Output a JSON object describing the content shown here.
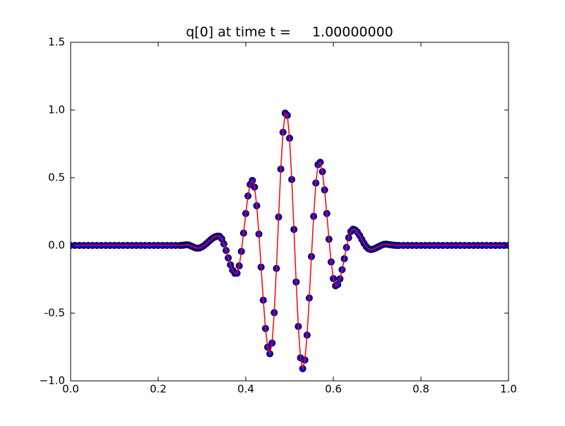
{
  "chart_data": {
    "type": "line",
    "title": "q[0] at time t =     1.00000000",
    "x": [
      0,
      0.01,
      0.02,
      0.03,
      0.04,
      0.05,
      0.06,
      0.07,
      0.08,
      0.09,
      0.1,
      0.11,
      0.12,
      0.13,
      0.14,
      0.15,
      0.16,
      0.17,
      0.18,
      0.19,
      0.2,
      0.21,
      0.22,
      0.23,
      0.24,
      0.25,
      0.255,
      0.26,
      0.265,
      0.27,
      0.275,
      0.28,
      0.285,
      0.29,
      0.295,
      0.3,
      0.305,
      0.31,
      0.315,
      0.32,
      0.325,
      0.33,
      0.335,
      0.34,
      0.345,
      0.35,
      0.355,
      0.36,
      0.365,
      0.37,
      0.375,
      0.38,
      0.385,
      0.39,
      0.395,
      0.4,
      0.405,
      0.41,
      0.415,
      0.42,
      0.425,
      0.43,
      0.435,
      0.44,
      0.445,
      0.45,
      0.455,
      0.46,
      0.465,
      0.47,
      0.475,
      0.48,
      0.485,
      0.49,
      0.495,
      0.5,
      0.505,
      0.51,
      0.515,
      0.52,
      0.525,
      0.53,
      0.535,
      0.54,
      0.545,
      0.55,
      0.555,
      0.56,
      0.565,
      0.57,
      0.575,
      0.58,
      0.585,
      0.59,
      0.595,
      0.6,
      0.605,
      0.61,
      0.615,
      0.62,
      0.625,
      0.63,
      0.635,
      0.64,
      0.645,
      0.65,
      0.655,
      0.66,
      0.665,
      0.67,
      0.675,
      0.68,
      0.685,
      0.69,
      0.695,
      0.7,
      0.705,
      0.71,
      0.715,
      0.72,
      0.725,
      0.73,
      0.735,
      0.74,
      0.745,
      0.75,
      0.76,
      0.77,
      0.78,
      0.79,
      0.8,
      0.81,
      0.82,
      0.83,
      0.84,
      0.85,
      0.86,
      0.87,
      0.88,
      0.89,
      0.9,
      0.91,
      0.92,
      0.93,
      0.94,
      0.95,
      0.96,
      0.97,
      0.98,
      0.99,
      1
    ],
    "series": [
      {
        "line_color": "#ff0000",
        "marker_color": "#0000ff",
        "values": [
          0,
          0,
          0,
          0,
          0,
          0,
          0,
          0,
          0,
          0,
          0,
          0,
          0,
          0,
          0,
          0,
          0,
          0,
          0,
          0,
          0,
          0,
          0,
          0,
          0,
          0,
          0.001,
          0.003,
          0.005,
          0.003,
          -0.004,
          -0.011,
          -0.018,
          -0.02,
          -0.018,
          -0.011,
          0,
          0.013,
          0.028,
          0.042,
          0.055,
          0.064,
          0.069,
          0.068,
          0.05,
          0.012,
          -0.037,
          -0.092,
          -0.143,
          -0.183,
          -0.206,
          -0.205,
          -0.151,
          -0.044,
          0.091,
          0.236,
          0.365,
          0.45,
          0.48,
          0.431,
          0.293,
          0.084,
          -0.16,
          -0.404,
          -0.613,
          -0.751,
          -0.8,
          -0.721,
          -0.496,
          -0.17,
          0.21,
          0.564,
          0.836,
          0.977,
          0.961,
          0.792,
          0.487,
          0.118,
          -0.27,
          -0.598,
          -0.83,
          -0.91,
          -0.846,
          -0.662,
          -0.388,
          -0.082,
          0.215,
          0.461,
          0.597,
          0.614,
          0.545,
          0.41,
          0.236,
          0.046,
          -0.122,
          -0.245,
          -0.298,
          -0.289,
          -0.247,
          -0.179,
          -0.098,
          -0.015,
          0.057,
          0.103,
          0.12,
          0.114,
          0.098,
          0.074,
          0.045,
          0.016,
          -0.008,
          -0.024,
          -0.03,
          -0.028,
          -0.022,
          -0.014,
          -0.006,
          0.002,
          0.008,
          0.01,
          0.008,
          0.005,
          0.003,
          0.001,
          0,
          0,
          0,
          0,
          0,
          0,
          0,
          0,
          0,
          0,
          0,
          0,
          0,
          0,
          0,
          0,
          0,
          0,
          0,
          0,
          0,
          0,
          0,
          0,
          0,
          0,
          0
        ]
      }
    ],
    "xlim": [
      0,
      1
    ],
    "ylim": [
      -1,
      1.5
    ],
    "xticks": [
      {
        "value": 0,
        "label": "0.0"
      },
      0.2,
      0.4,
      0.6,
      0.8,
      {
        "value": 1,
        "label": "1.0"
      }
    ],
    "yticks": [
      {
        "value": -1,
        "label": "−1.0"
      },
      -0.5,
      {
        "value": 0,
        "label": "0.0"
      },
      0.5,
      {
        "value": 1,
        "label": "1.0"
      },
      1.5
    ],
    "grid": false
  }
}
